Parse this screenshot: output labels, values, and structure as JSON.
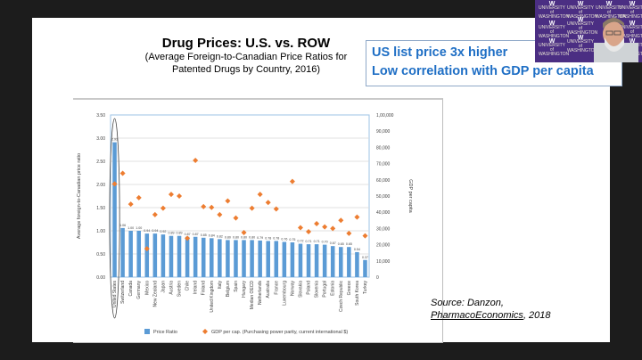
{
  "slide": {
    "title": "Drug Prices:  U.S. vs. ROW",
    "subtitle_line1": "(Average Foreign-to-Canadian Price Ratios for",
    "subtitle_line2": "Patented Drugs by Country, 2016)",
    "callout_line1": "US list price 3x higher",
    "callout_line2": "Low correlation with GDP per capita",
    "source_prefix": "Source:  Danzon,",
    "source_journal": "PharmacoEconomics",
    "source_year": ", 2018"
  },
  "video": {
    "background_logo_text": "UNIVERSITY of WASHINGTON",
    "logo_letter": "W"
  },
  "colors": {
    "bar": "#5b9bd5",
    "gdp_marker": "#ed7d31",
    "callout_text": "#1f6fc5",
    "video_bg": "#4b2e83"
  },
  "chart_data": {
    "type": "bar",
    "title": "",
    "categories": [
      "United States",
      "Switzerland",
      "Canada",
      "Germany",
      "Mexico",
      "New Zealand",
      "Japan",
      "Austria",
      "Sweden",
      "Chile",
      "Ireland",
      "Finland",
      "United Kingdom",
      "Italy",
      "Belgium",
      "Spain",
      "Hungary",
      "Median OECD",
      "Netherlands",
      "Australia",
      "France",
      "Luxembourg",
      "Norway",
      "Slovakia",
      "Poland",
      "Slovenia",
      "Portugal",
      "Estonia",
      "Czech Republic",
      "Greece",
      "South Korea",
      "Turkey"
    ],
    "series": [
      {
        "name": "Price Ratio",
        "type": "bar",
        "axis": "left",
        "values": [
          2.91,
          1.06,
          1.0,
          1.0,
          0.94,
          0.94,
          0.92,
          0.89,
          0.89,
          0.87,
          0.87,
          0.85,
          0.84,
          0.82,
          0.8,
          0.8,
          0.8,
          0.8,
          0.79,
          0.78,
          0.78,
          0.76,
          0.75,
          0.72,
          0.71,
          0.71,
          0.7,
          0.67,
          0.65,
          0.65,
          0.54,
          0.37
        ],
        "labels": [
          "2.91",
          "1.06",
          "1.00",
          "1.00",
          "0.94",
          "0.94",
          "0.92",
          "0.89",
          "0.89",
          "0.87",
          "0.87",
          "0.85",
          "0.84",
          "0.82",
          "0.80",
          "0.80",
          "0.80",
          "0.80",
          "0.79",
          "0.78",
          "0.78",
          "0.76",
          "0.75",
          "0.72",
          "0.71",
          "0.71",
          "0.70",
          "0.67",
          "0.65",
          "0.65",
          "0.54",
          "0.37"
        ]
      },
      {
        "name": "GDP per cap. (Purchasing power parity, current international $)",
        "type": "scatter",
        "axis": "right",
        "values": [
          57500,
          64000,
          45000,
          49000,
          17500,
          38500,
          42500,
          51000,
          50000,
          24000,
          72000,
          43500,
          43000,
          38500,
          47000,
          36500,
          27500,
          42500,
          51000,
          46000,
          42000,
          null,
          59000,
          30500,
          28000,
          33000,
          31000,
          30000,
          35000,
          27000,
          37000,
          25500
        ]
      }
    ],
    "xlabel": "",
    "ylabel": "Average foreign-to-Canadian price ratio",
    "ylabel_right": "GDP per capita",
    "ylim": [
      0,
      3.5
    ],
    "ylim_right": [
      0,
      100000
    ],
    "yticks": [
      "0.00",
      "0.50",
      "1.00",
      "1.50",
      "2.00",
      "2.50",
      "3.00",
      "3.50"
    ],
    "yticks_right": [
      "0",
      "10,000",
      "20,000",
      "30,000",
      "40,000",
      "50,000",
      "60,000",
      "70,000",
      "80,000",
      "90,000",
      "1,00,000"
    ],
    "grid": true,
    "legend_position": "bottom",
    "legend": [
      "Price Ratio",
      "GDP per cap. (Purchasing power parity, current international $)"
    ],
    "annotation": "United States highlighted with ellipse"
  }
}
